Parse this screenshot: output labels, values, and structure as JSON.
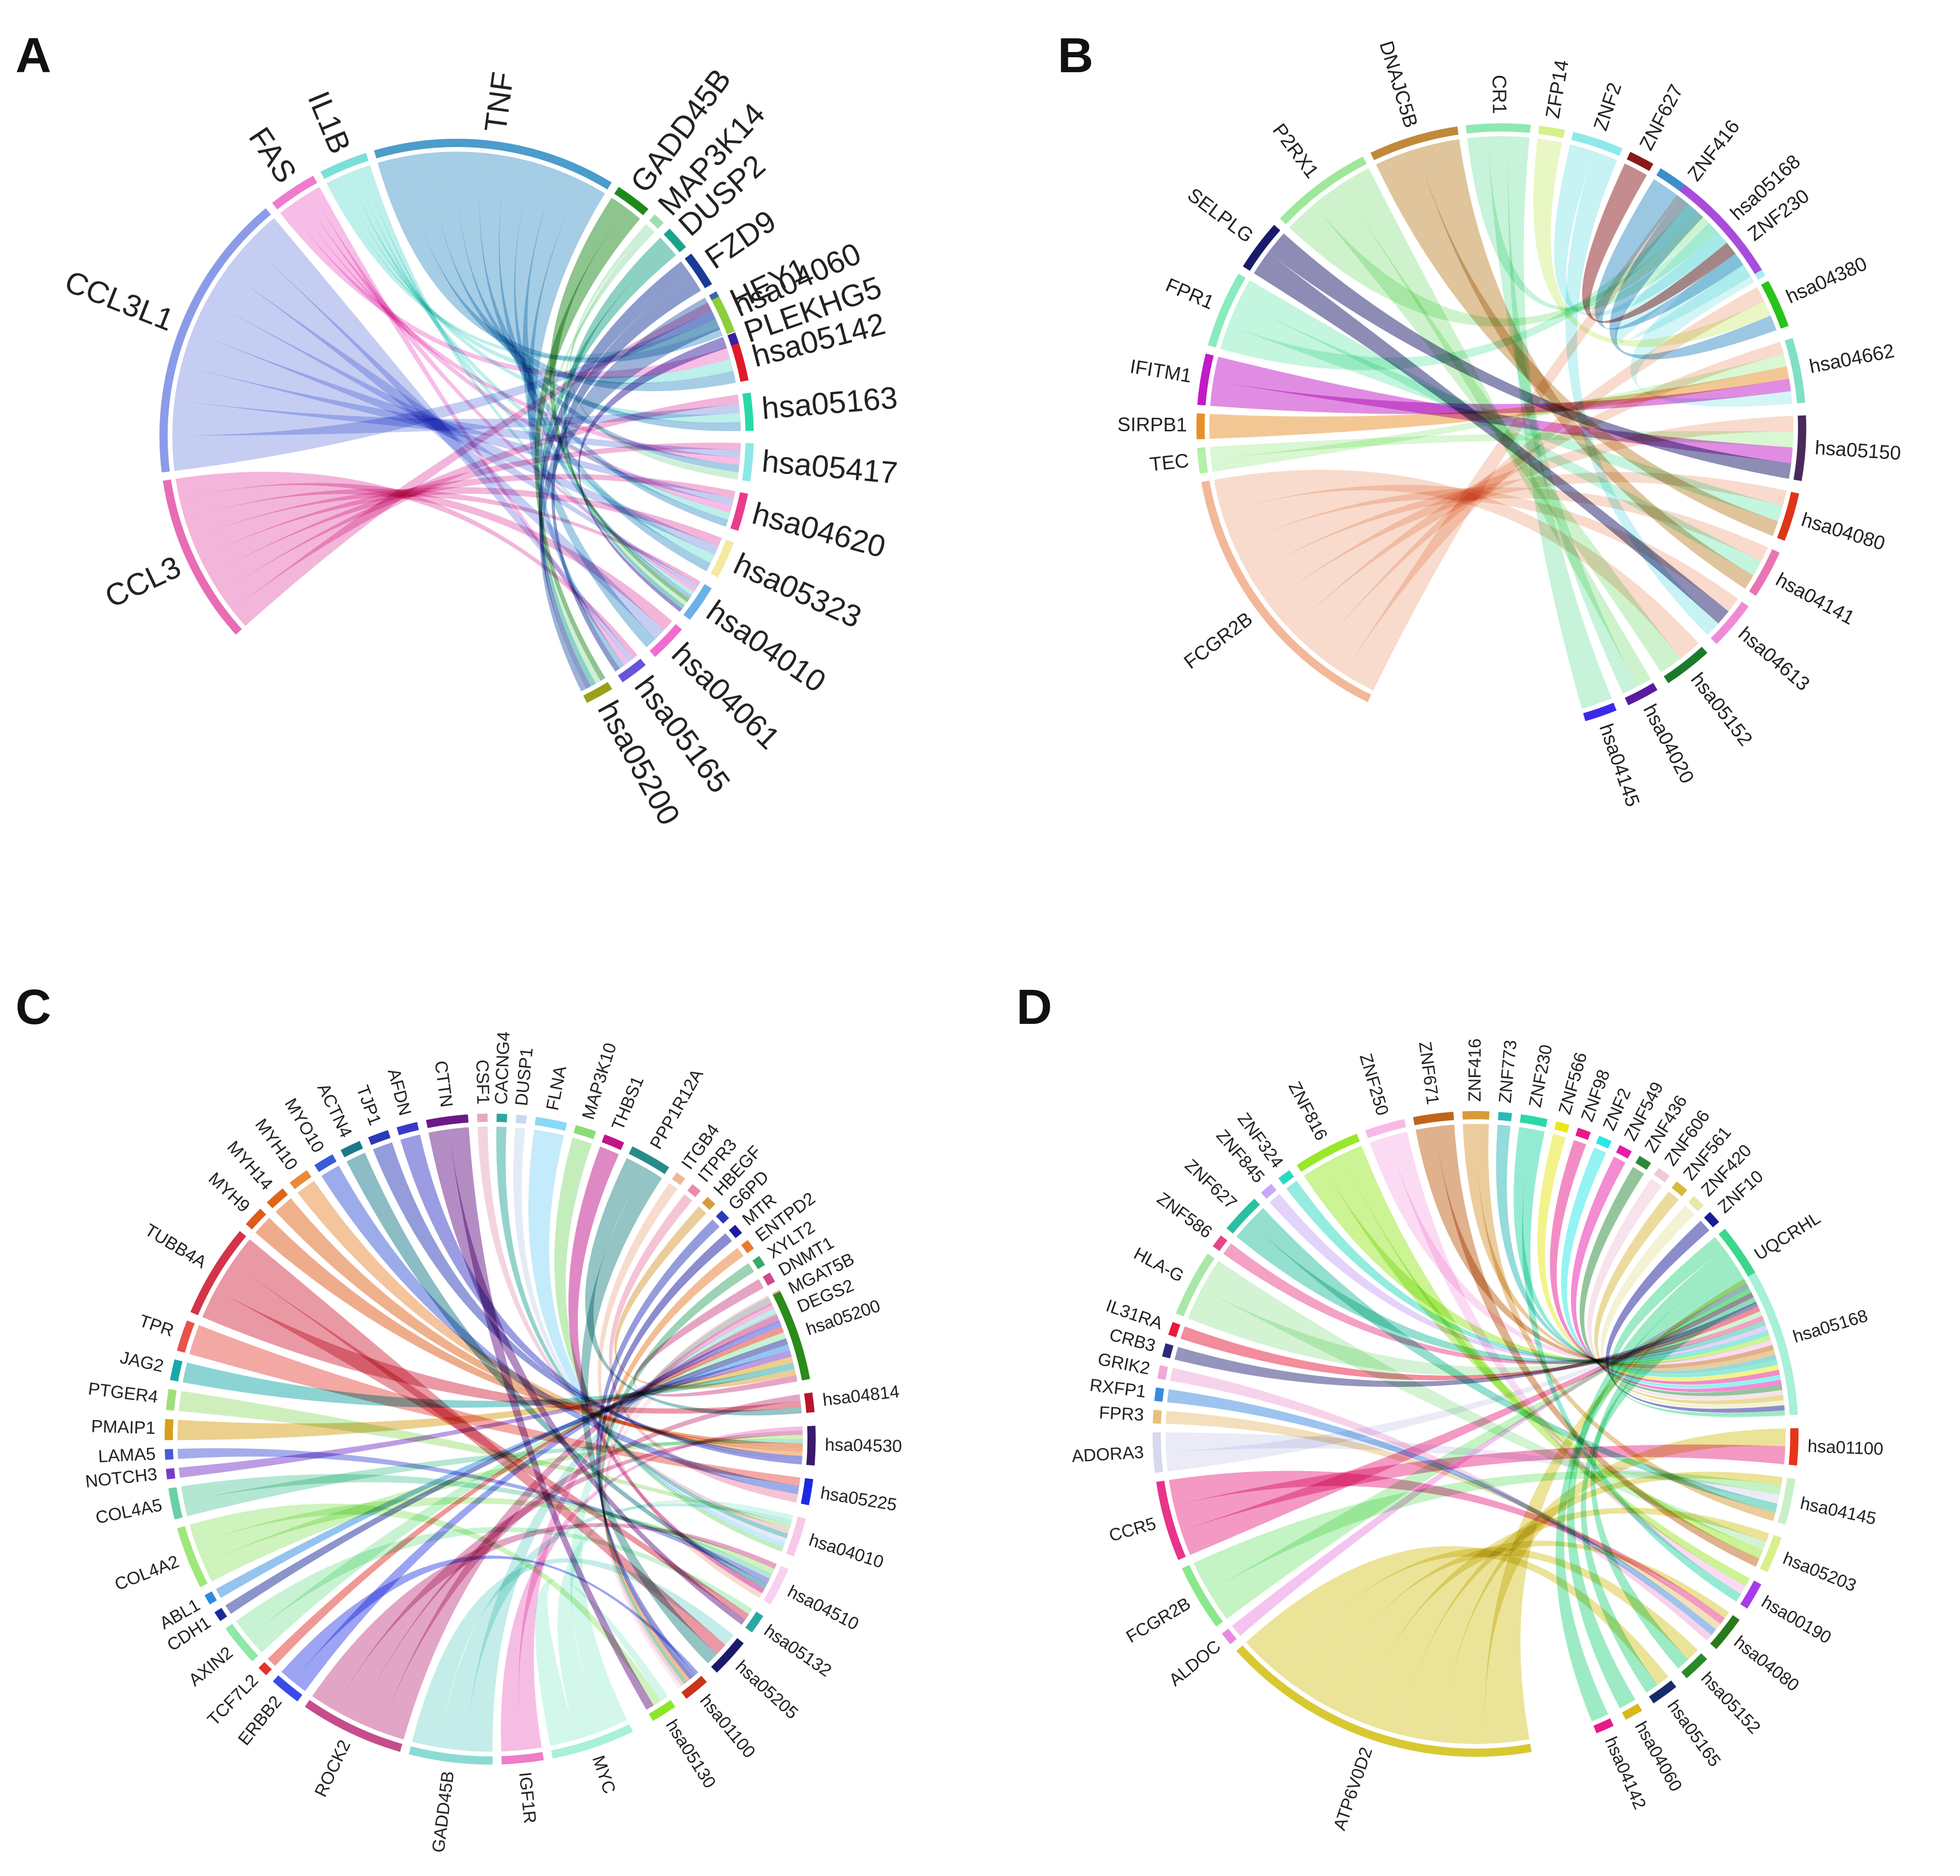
{
  "figure": {
    "panels": [
      {
        "letter": "A",
        "genes": [
          "CCL3",
          "CCL3L1",
          "FAS",
          "IL1B",
          "TNF",
          "GADD45B",
          "MAP3K14",
          "DUSP2",
          "FZD9",
          "HEY1",
          "PLEKHG5"
        ],
        "gene_weights": [
          14,
          24,
          4,
          4,
          20,
          3,
          1,
          2,
          3,
          3,
          1
        ],
        "pathways": [
          "hsa04060",
          "hsa05142",
          "hsa05163",
          "hsa05417",
          "hsa04620",
          "hsa05323",
          "hsa04010",
          "hsa04061",
          "hsa05165",
          "hsa05200"
        ],
        "pathway_weights": [
          4,
          4,
          4,
          4,
          4,
          4,
          4,
          4,
          3,
          3
        ],
        "gene_colors": [
          "#e86cb4",
          "#8c9be8",
          "#ef7bcf",
          "#7ce0d8",
          "#4c9ccc",
          "#1e8a1e",
          "#9ee0b0",
          "#1aa38a",
          "#1a3a9a",
          "#3a66b0",
          "#3a1fa0"
        ],
        "pathway_colors": [
          "#8ccf3a",
          "#e01a2a",
          "#27d9a8",
          "#8ee8e8",
          "#ea3c8c",
          "#f5e8a0",
          "#6cb0ea",
          "#f06cd0",
          "#6655d8",
          "#9aa01a"
        ],
        "edges": [
          [
            0,
            0
          ],
          [
            0,
            2
          ],
          [
            0,
            3
          ],
          [
            0,
            4
          ],
          [
            0,
            5
          ],
          [
            0,
            6
          ],
          [
            0,
            7
          ],
          [
            0,
            8
          ],
          [
            1,
            0
          ],
          [
            1,
            2
          ],
          [
            1,
            3
          ],
          [
            1,
            4
          ],
          [
            1,
            5
          ],
          [
            1,
            6
          ],
          [
            1,
            7
          ],
          [
            1,
            8
          ],
          [
            2,
            1
          ],
          [
            2,
            3
          ],
          [
            2,
            4
          ],
          [
            2,
            6
          ],
          [
            2,
            8
          ],
          [
            3,
            0
          ],
          [
            3,
            1
          ],
          [
            3,
            2
          ],
          [
            3,
            4
          ],
          [
            3,
            5
          ],
          [
            3,
            6
          ],
          [
            4,
            0
          ],
          [
            4,
            1
          ],
          [
            4,
            2
          ],
          [
            4,
            3
          ],
          [
            4,
            4
          ],
          [
            4,
            5
          ],
          [
            4,
            6
          ],
          [
            4,
            7
          ],
          [
            4,
            8
          ],
          [
            5,
            6
          ],
          [
            5,
            9
          ],
          [
            6,
            3
          ],
          [
            6,
            6
          ],
          [
            6,
            9
          ],
          [
            7,
            6
          ],
          [
            7,
            9
          ],
          [
            8,
            9
          ],
          [
            8,
            8
          ],
          [
            9,
            9
          ],
          [
            10,
            6
          ]
        ],
        "label_size": 60
      },
      {
        "letter": "B",
        "genes": [
          "FCGR2B",
          "TEC",
          "SIRPB1",
          "IFITM1",
          "FPR1",
          "SELPLG",
          "P2RX1",
          "DNAJC5B",
          "CR1",
          "ZFP14",
          "ZNF2",
          "ZNF627",
          "ZNF416",
          "ZNF230"
        ],
        "gene_weights": [
          22,
          2,
          2,
          4,
          6,
          4,
          8,
          7,
          5,
          2,
          4,
          2,
          5,
          6
        ],
        "pathways": [
          "hsa05168",
          "hsa04380",
          "hsa04662",
          "hsa05150",
          "hsa04080",
          "hsa04141",
          "hsa04613",
          "hsa05152",
          "hsa04020",
          "hsa04145"
        ],
        "pathway_weights": [
          7,
          3,
          4,
          4,
          3,
          3,
          3,
          3,
          2,
          2
        ],
        "gene_colors": [
          "#f2b899",
          "#b3f0a8",
          "#e8902a",
          "#c31ac8",
          "#8aebbf",
          "#1a1a6a",
          "#9de89a",
          "#c08a3a",
          "#8ee8b4",
          "#d4f08a",
          "#8fe8ea",
          "#8a1a1a",
          "#3a90c8",
          "#a8ecee"
        ],
        "pathway_colors": [
          "#a94cdb",
          "#27c21a",
          "#7fe0c4",
          "#4a2a5a",
          "#e0341a",
          "#e874b4",
          "#f08ad8",
          "#1a7a2a",
          "#5a1aa0",
          "#3a2ae8"
        ],
        "edges": [
          [
            0,
            0
          ],
          [
            0,
            1
          ],
          [
            0,
            2
          ],
          [
            0,
            3
          ],
          [
            0,
            4
          ],
          [
            0,
            5
          ],
          [
            0,
            6
          ],
          [
            0,
            7
          ],
          [
            1,
            2
          ],
          [
            1,
            3
          ],
          [
            2,
            2
          ],
          [
            3,
            2
          ],
          [
            3,
            3
          ],
          [
            4,
            0
          ],
          [
            4,
            4
          ],
          [
            4,
            5
          ],
          [
            5,
            6
          ],
          [
            5,
            3
          ],
          [
            6,
            0
          ],
          [
            6,
            7
          ],
          [
            6,
            8
          ],
          [
            7,
            4
          ],
          [
            7,
            5
          ],
          [
            8,
            0
          ],
          [
            8,
            8
          ],
          [
            8,
            9
          ],
          [
            9,
            1
          ],
          [
            10,
            0
          ],
          [
            10,
            6
          ],
          [
            11,
            0
          ],
          [
            12,
            0
          ],
          [
            12,
            1
          ],
          [
            13,
            0
          ],
          [
            13,
            2
          ]
        ],
        "label_size": 38
      },
      {
        "letter": "C",
        "genes": [
          "MYC",
          "IGF1R",
          "GADD45B",
          "ROCK2",
          "ERBB2",
          "TCF7L2",
          "AXIN2",
          "CDH1",
          "ABL1",
          "COL4A2",
          "COL4A5",
          "NOTCH3",
          "LAMA5",
          "PMAIP1",
          "PTGER4",
          "JAG2",
          "TPR",
          "TUBB4A",
          "MYH9",
          "MYH14",
          "MYH10",
          "MYO10",
          "ACTN4",
          "TJP1",
          "AFDN",
          "CTTN",
          "CSF1",
          "CACNG4",
          "DUSP1",
          "FLNA",
          "MAP3K10",
          "THBS1",
          "PPP1R12A",
          "ITGB4",
          "ITPR3",
          "HBEGF",
          "G6PD",
          "MTR",
          "ENTPD2",
          "XYLT2",
          "DNMT1",
          "MGAT5B",
          "DEGS2"
        ],
        "gene_weights": [
          8,
          4,
          8,
          10,
          3,
          1,
          4,
          1,
          1,
          6,
          3,
          1,
          1,
          2,
          2,
          2,
          3,
          9,
          2,
          2,
          2,
          2,
          2,
          2,
          2,
          4,
          1,
          1,
          1,
          3,
          2,
          2,
          4,
          1,
          1,
          1,
          1,
          1,
          1,
          1,
          1,
          1,
          1
        ],
        "pathways": [
          "hsa05200",
          "hsa04814",
          "hsa04530",
          "hsa05225",
          "hsa04010",
          "hsa04510",
          "hsa05132",
          "hsa05205",
          "hsa01100",
          "hsa05130"
        ],
        "pathway_weights": [
          14,
          3,
          6,
          4,
          6,
          6,
          3,
          6,
          4,
          4
        ],
        "gene_colors": [
          "#a8f0d8",
          "#ee7cc8",
          "#8adbd4",
          "#c74c8c",
          "#3a4ae8",
          "#e0342a",
          "#8fe8a8",
          "#1a2a9a",
          "#2a8ae0",
          "#9ee87a",
          "#6ad0a8",
          "#7a3ac8",
          "#4a5ad8",
          "#d8a01a",
          "#9ee07a",
          "#1aa8a8",
          "#e8524a",
          "#d4344a",
          "#e05a1a",
          "#e0641a",
          "#ea8a3a",
          "#3a5ad8",
          "#1a7a8a",
          "#2a3ab8",
          "#3a3ac8",
          "#6a1a8a",
          "#e8a8c0",
          "#2aa89a",
          "#c8d8f0",
          "#8ad8f8",
          "#8adb7a",
          "#c0148a",
          "#2a8a8a",
          "#f0b89a",
          "#ea8aaa",
          "#d89a3a",
          "#2a3ab8",
          "#1a1aa0",
          "#ea7a2a",
          "#3aa86a",
          "#ce4a8a",
          "#e8a8b8",
          "#f8d8e8"
        ],
        "pathway_colors": [
          "#2a8a1a",
          "#b8142a",
          "#3a1a6a",
          "#1a2ae0",
          "#f8c8e8",
          "#f8d0f0",
          "#2aa8a0",
          "#1a1a6a",
          "#c8341a",
          "#8ae82a"
        ],
        "edges": [
          [
            0,
            0
          ],
          [
            0,
            4
          ],
          [
            0,
            9
          ],
          [
            1,
            0
          ],
          [
            1,
            2
          ],
          [
            2,
            0
          ],
          [
            2,
            4
          ],
          [
            2,
            7
          ],
          [
            3,
            0
          ],
          [
            3,
            1
          ],
          [
            3,
            2
          ],
          [
            3,
            5
          ],
          [
            4,
            0
          ],
          [
            4,
            8
          ],
          [
            5,
            0
          ],
          [
            6,
            0
          ],
          [
            6,
            6
          ],
          [
            7,
            0
          ],
          [
            8,
            0
          ],
          [
            9,
            2
          ],
          [
            9,
            5
          ],
          [
            9,
            9
          ],
          [
            10,
            2
          ],
          [
            10,
            5
          ],
          [
            11,
            0
          ],
          [
            12,
            5
          ],
          [
            13,
            0
          ],
          [
            14,
            4
          ],
          [
            15,
            0
          ],
          [
            16,
            3
          ],
          [
            17,
            1
          ],
          [
            17,
            6
          ],
          [
            17,
            7
          ],
          [
            18,
            2
          ],
          [
            19,
            2
          ],
          [
            20,
            2
          ],
          [
            21,
            3
          ],
          [
            22,
            5
          ],
          [
            23,
            2
          ],
          [
            24,
            2
          ],
          [
            25,
            6
          ],
          [
            25,
            9
          ],
          [
            26,
            4
          ],
          [
            27,
            4
          ],
          [
            28,
            4
          ],
          [
            29,
            4
          ],
          [
            30,
            4
          ],
          [
            31,
            5
          ],
          [
            32,
            1
          ],
          [
            32,
            7
          ],
          [
            33,
            5
          ],
          [
            34,
            3
          ],
          [
            35,
            0
          ],
          [
            36,
            8
          ],
          [
            37,
            8
          ],
          [
            38,
            8
          ],
          [
            39,
            8
          ],
          [
            40,
            0
          ],
          [
            41,
            8
          ],
          [
            42,
            8
          ]
        ],
        "label_size": 34
      },
      {
        "letter": "D",
        "genes": [
          "ATP6V0D2",
          "ALDOC",
          "FCGR2B",
          "CCR5",
          "ADORA3",
          "FPR3",
          "RXFP1",
          "GRIK2",
          "CRB3",
          "IL31RA",
          "HLA-G",
          "ZNF586",
          "ZNF627",
          "ZNF845",
          "ZNF324",
          "ZNF816",
          "ZNF250",
          "ZNF671",
          "ZNF416",
          "ZNF773",
          "ZNF230",
          "ZNF566",
          "ZNF98",
          "ZNF2",
          "ZNF549",
          "ZNF436",
          "ZNF606",
          "ZNF561",
          "ZNF420",
          "ZNF10",
          "UQCRHL"
        ],
        "gene_weights": [
          24,
          1,
          5,
          6,
          3,
          1,
          1,
          1,
          1,
          1,
          5,
          1,
          3,
          1,
          1,
          5,
          3,
          3,
          2,
          1,
          2,
          1,
          1,
          1,
          1,
          1,
          1,
          1,
          1,
          1,
          6
        ],
        "pathways": [
          "hsa05168",
          "hsa01100",
          "hsa04145",
          "hsa05203",
          "hsa00190",
          "hsa04080",
          "hsa05152",
          "hsa05165",
          "hsa04060",
          "hsa04142"
        ],
        "pathway_weights": [
          16,
          4,
          5,
          4,
          3,
          4,
          3,
          3,
          2,
          2
        ],
        "gene_colors": [
          "#d8c832",
          "#e88ae0",
          "#8ae88a",
          "#e8348a",
          "#d8d8f0",
          "#e8c07a",
          "#3a8ae0",
          "#f0a8d8",
          "#2a2a7a",
          "#e81a3a",
          "#a8e8a8",
          "#e8448a",
          "#2ac0a0",
          "#c8a8f8",
          "#2ad8c0",
          "#9ae82a",
          "#f8b8e8",
          "#c0641a",
          "#d89a3a",
          "#2ab8b8",
          "#2ad8a8",
          "#e8e81a",
          "#e81a8a",
          "#2ae8e8",
          "#e81aa8",
          "#2a8a3a",
          "#f0c8d8",
          "#d8b83a",
          "#e8e8a8",
          "#1a1a9a",
          "#3ad88a"
        ],
        "pathway_colors": [
          "#a8f0d8",
          "#e8341a",
          "#c8f0c8",
          "#d8f08a",
          "#a83ae8",
          "#2a7a1a",
          "#2a8a2a",
          "#1a2a6a",
          "#d8b81a",
          "#e81a8a"
        ],
        "edges": [
          [
            0,
            0
          ],
          [
            0,
            1
          ],
          [
            0,
            2
          ],
          [
            0,
            3
          ],
          [
            0,
            5
          ],
          [
            0,
            6
          ],
          [
            0,
            7
          ],
          [
            1,
            0
          ],
          [
            2,
            0
          ],
          [
            2,
            2
          ],
          [
            3,
            0
          ],
          [
            3,
            1
          ],
          [
            3,
            5
          ],
          [
            4,
            0
          ],
          [
            4,
            2
          ],
          [
            5,
            5
          ],
          [
            6,
            5
          ],
          [
            7,
            5
          ],
          [
            8,
            0
          ],
          [
            9,
            0
          ],
          [
            10,
            0
          ],
          [
            10,
            3
          ],
          [
            11,
            0
          ],
          [
            12,
            0
          ],
          [
            12,
            2
          ],
          [
            13,
            0
          ],
          [
            14,
            0
          ],
          [
            15,
            0
          ],
          [
            15,
            3
          ],
          [
            15,
            4
          ],
          [
            16,
            0
          ],
          [
            16,
            4
          ],
          [
            17,
            0
          ],
          [
            17,
            3
          ],
          [
            18,
            0
          ],
          [
            18,
            2
          ],
          [
            19,
            0
          ],
          [
            20,
            0
          ],
          [
            20,
            4
          ],
          [
            21,
            0
          ],
          [
            22,
            0
          ],
          [
            23,
            0
          ],
          [
            24,
            0
          ],
          [
            25,
            0
          ],
          [
            26,
            0
          ],
          [
            27,
            0
          ],
          [
            28,
            0
          ],
          [
            29,
            0
          ],
          [
            30,
            0
          ],
          [
            30,
            8
          ],
          [
            30,
            9
          ],
          [
            30,
            6
          ],
          [
            30,
            7
          ]
        ],
        "label_size": 34
      }
    ]
  }
}
